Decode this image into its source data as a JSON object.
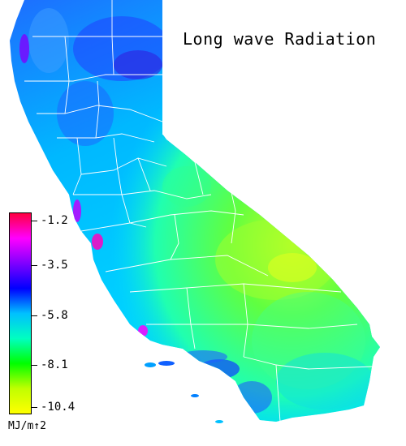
{
  "title": "Long wave Radiation",
  "legend": {
    "unit": "MJ/m↑2",
    "ticks": [
      "-1.2",
      "-3.5",
      "-5.8",
      "-8.1",
      "-10.4"
    ],
    "range": [
      -10.4,
      -1.2
    ],
    "colors": [
      "#ff0040",
      "#ff00ff",
      "#8000ff",
      "#0000ff",
      "#00c0ff",
      "#00ffc0",
      "#00ff00",
      "#c0ff00",
      "#ffff00"
    ]
  },
  "map": {
    "region": "California",
    "background": "#ffffff",
    "boundary_color": "#ffffff"
  }
}
